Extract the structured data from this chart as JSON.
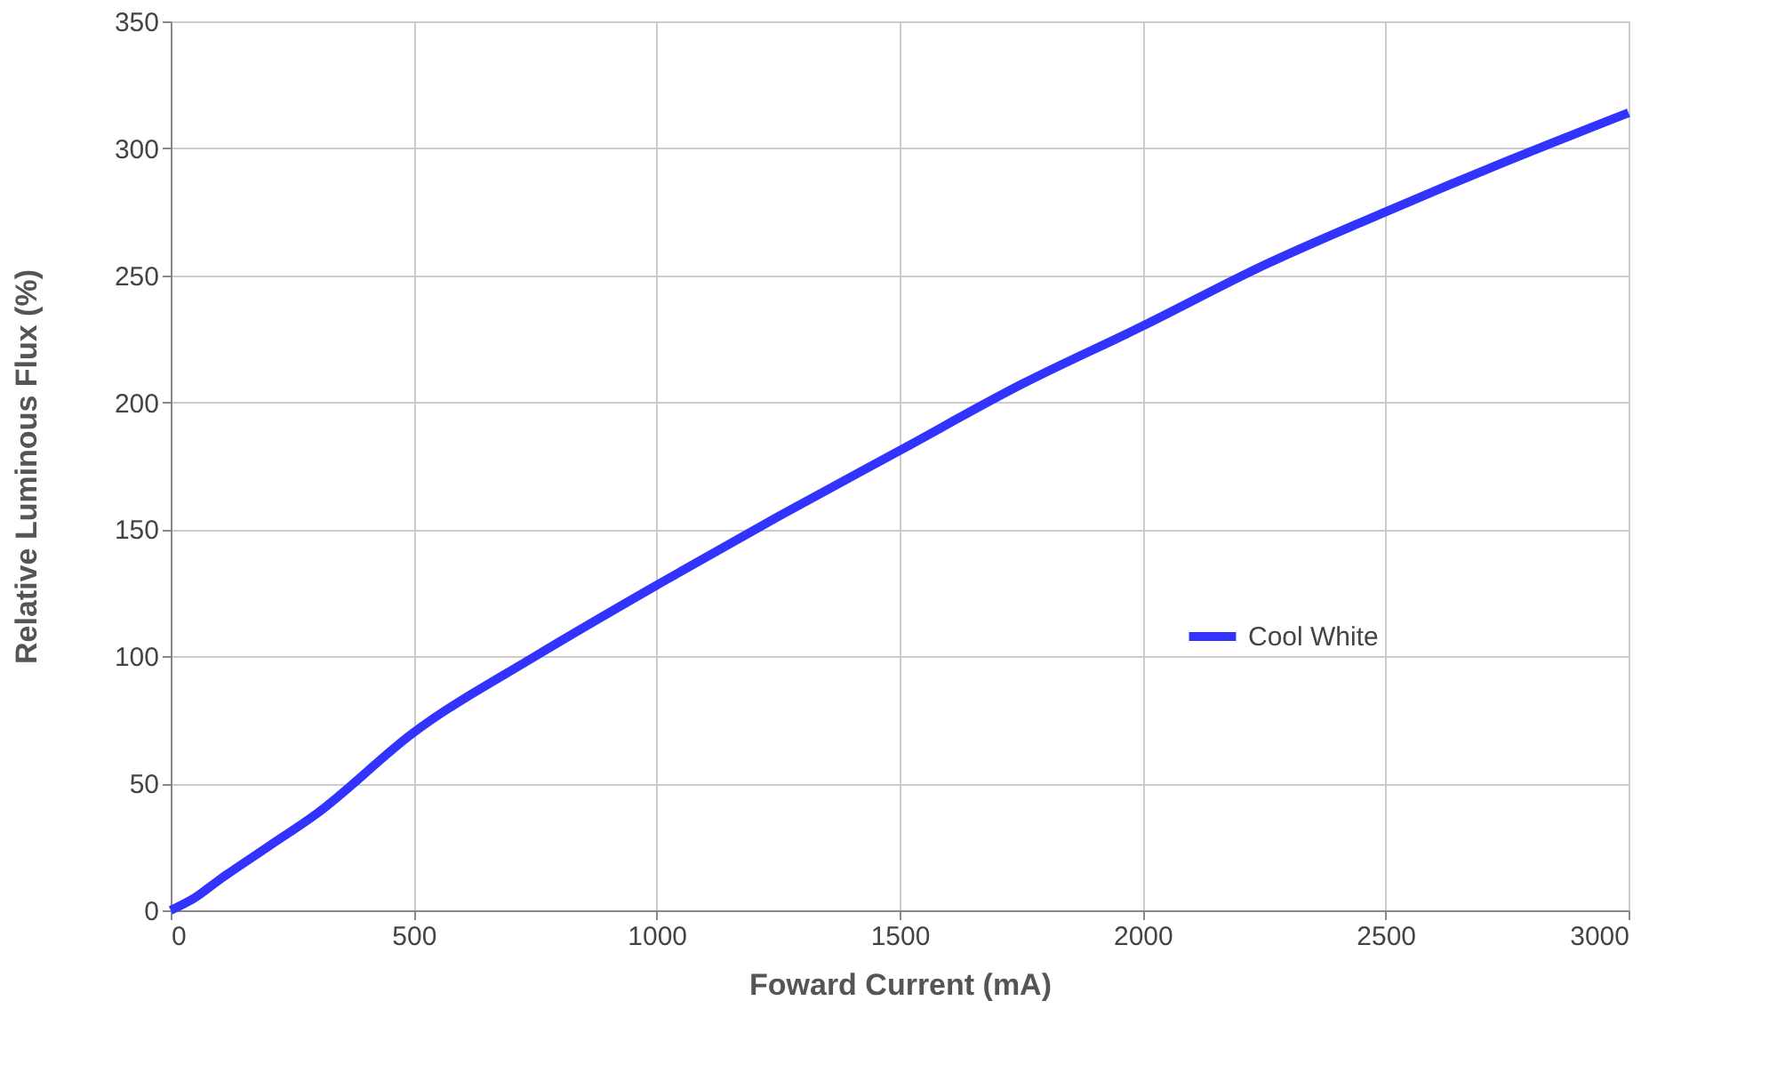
{
  "chart_data": {
    "type": "line",
    "xlabel": "Foward Current (mA)",
    "ylabel": "Relative Luminous Flux (%)",
    "x": [
      0,
      50,
      100,
      200,
      300,
      500,
      750,
      1000,
      1250,
      1500,
      1750,
      2000,
      2250,
      2500,
      2750,
      3000
    ],
    "series": [
      {
        "name": "Cool White",
        "color": "#3333ff",
        "values": [
          0,
          5,
          12,
          25,
          38,
          70,
          100,
          128,
          155,
          181,
          207,
          230,
          254,
          275,
          295,
          314
        ]
      }
    ],
    "xlim": [
      0,
      3000
    ],
    "xticks": [
      0,
      500,
      1000,
      1500,
      2000,
      2500,
      3000
    ],
    "ylim": [
      0,
      350
    ],
    "yticks": [
      0,
      50,
      100,
      150,
      200,
      250,
      300,
      350
    ],
    "grid": true,
    "legend": "right",
    "marker": "none",
    "line_style": "solid"
  }
}
